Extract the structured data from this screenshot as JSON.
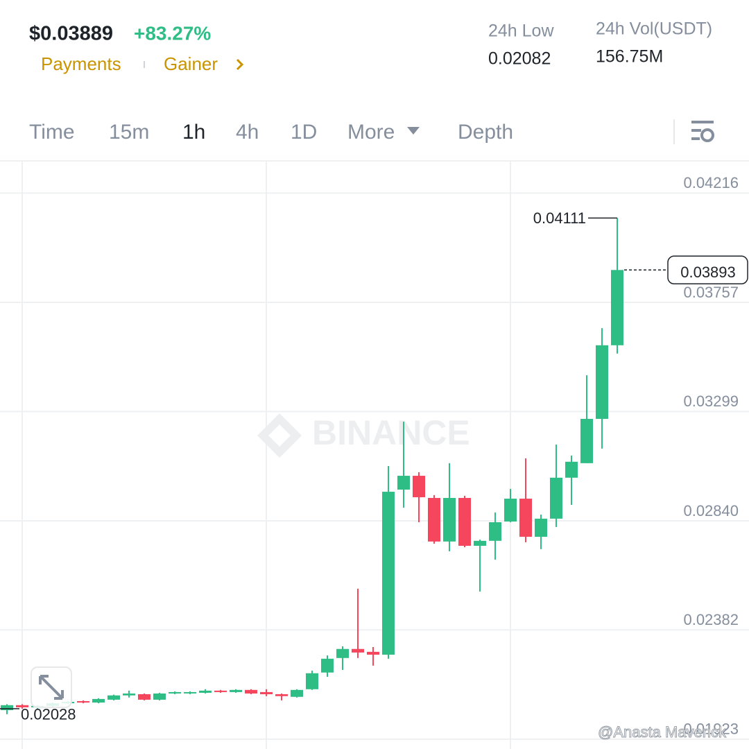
{
  "header": {
    "price": "$0.03889",
    "change": "+83.27%",
    "tags": [
      "Payments",
      "Gainer"
    ],
    "stats": [
      {
        "label": "24h Low",
        "value": "0.02082"
      },
      {
        "label": "24h Vol(USDT)",
        "value": "156.75M"
      }
    ]
  },
  "tabs": [
    "Time",
    "15m",
    "1h",
    "4h",
    "1D",
    "More",
    "Depth"
  ],
  "watermark": "BINANCE",
  "credit": "@Anasta Maverick",
  "chart_data": {
    "type": "candlestick",
    "up_color": "#2ebd85",
    "down_color": "#f6465d",
    "grid": true,
    "open": [
      0.02045,
      0.02066,
      0.02057,
      0.02063,
      0.02074,
      0.02083,
      0.02077,
      0.02089,
      0.02107,
      0.02112,
      0.02089,
      0.02115,
      0.02118,
      0.02118,
      0.02127,
      0.02121,
      0.0213,
      0.02121,
      0.02112,
      0.02101,
      0.02133,
      0.02203,
      0.02264,
      0.02302,
      0.0229,
      0.02278,
      0.02971,
      0.03029,
      0.02936,
      0.02753,
      0.02936,
      0.02735,
      0.02756,
      0.02837,
      0.02933,
      0.02773,
      0.02849,
      0.03021,
      0.03082,
      0.03268,
      0.03577
    ],
    "high": [
      0.0207,
      0.0207,
      0.02066,
      0.02077,
      0.02083,
      0.02086,
      0.02095,
      0.0211,
      0.02127,
      0.02115,
      0.02118,
      0.02124,
      0.02124,
      0.02133,
      0.0213,
      0.02133,
      0.02133,
      0.02133,
      0.02115,
      0.02133,
      0.02211,
      0.02275,
      0.02313,
      0.02555,
      0.0231,
      0.0307,
      0.03256,
      0.03044,
      0.02948,
      0.03082,
      0.02945,
      0.02761,
      0.02875,
      0.02974,
      0.03102,
      0.02866,
      0.0316,
      0.03114,
      0.03451,
      0.03649,
      0.04111
    ],
    "low": [
      0.02028,
      0.02051,
      0.02051,
      0.02057,
      0.02071,
      0.02074,
      0.02074,
      0.02086,
      0.02098,
      0.02086,
      0.02086,
      0.02112,
      0.02112,
      0.02115,
      0.02118,
      0.02118,
      0.02112,
      0.02104,
      0.02086,
      0.02098,
      0.0213,
      0.02185,
      0.02214,
      0.02264,
      0.02232,
      0.02261,
      0.02895,
      0.02834,
      0.02744,
      0.02712,
      0.02729,
      0.02543,
      0.02677,
      0.02834,
      0.0275,
      0.02721,
      0.02814,
      0.02907,
      0.03082,
      0.03143,
      0.03542
    ],
    "close": [
      0.02066,
      0.02057,
      0.02063,
      0.02074,
      0.0208,
      0.02077,
      0.02092,
      0.02107,
      0.02115,
      0.02089,
      0.02115,
      0.02121,
      0.02121,
      0.02127,
      0.02121,
      0.0213,
      0.02115,
      0.02112,
      0.02104,
      0.0213,
      0.022,
      0.02261,
      0.02302,
      0.02287,
      0.02278,
      0.02962,
      0.03029,
      0.02939,
      0.02753,
      0.02936,
      0.02735,
      0.02756,
      0.02834,
      0.02933,
      0.02773,
      0.02849,
      0.03021,
      0.03088,
      0.03268,
      0.03577,
      0.03893
    ],
    "ylim": [
      0.01882,
      0.04351
    ],
    "yticks": [
      0.04216,
      0.03757,
      0.03299,
      {
        "value": 0.0284,
        "label": "0.02840"
      },
      0.02382,
      0.01923
    ],
    "annotations": {
      "high": 0.04111,
      "last_price": 0.03893,
      "low": 0.02028
    }
  }
}
